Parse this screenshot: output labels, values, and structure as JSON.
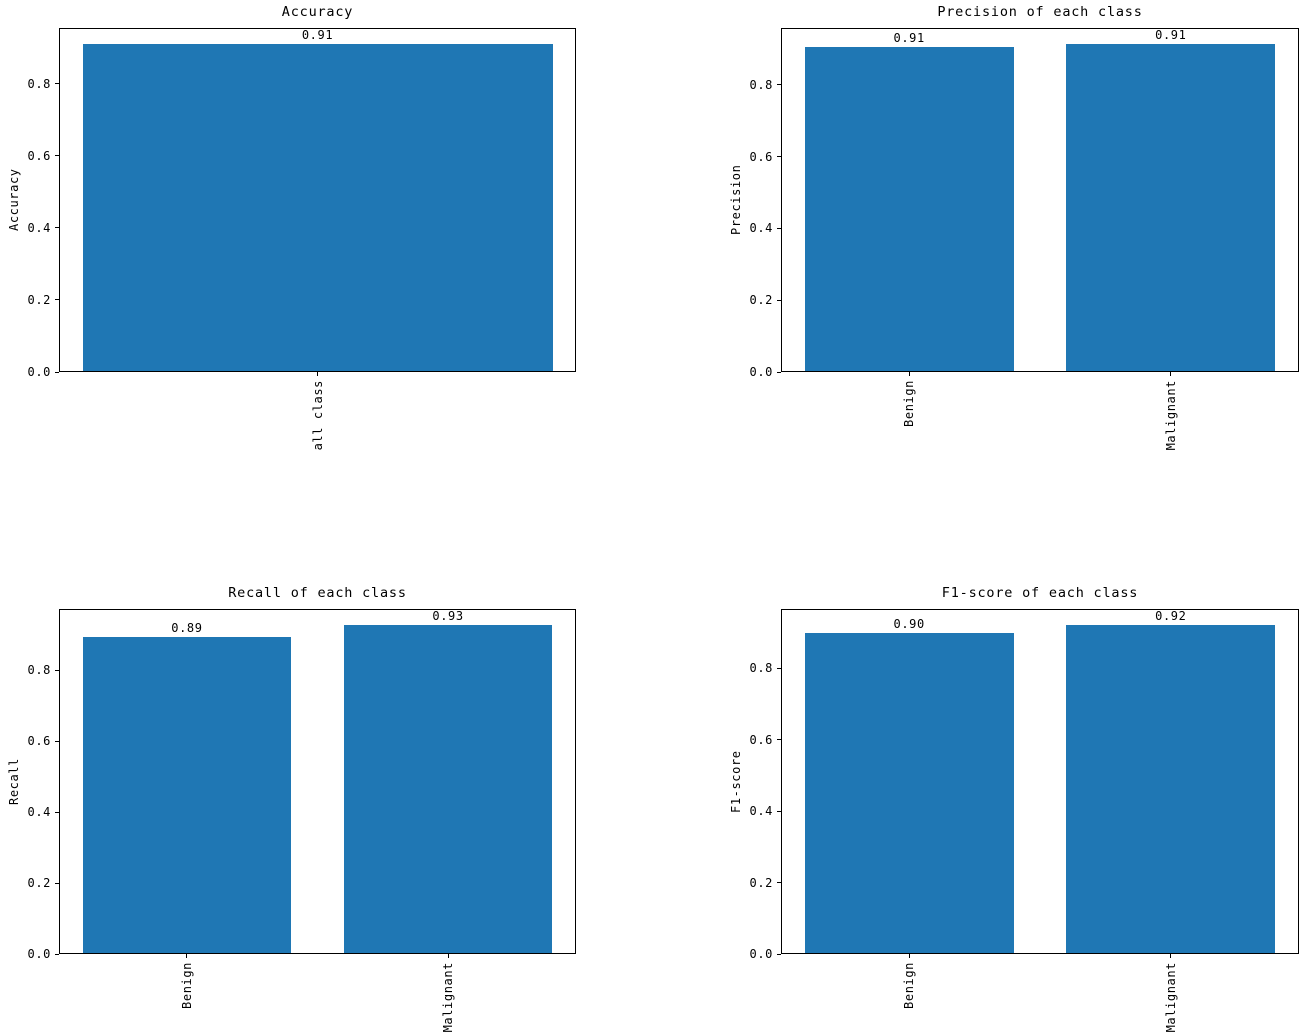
{
  "figure": {
    "background": "#ffffff",
    "bar_color": "#1f77b4",
    "axis_color": "#000000",
    "text_color": "#000000"
  },
  "chart_data": [
    {
      "type": "bar",
      "title": "Accuracy",
      "ylabel": "Accuracy",
      "xlabel": "",
      "categories": [
        "all class"
      ],
      "values": [
        0.91
      ],
      "value_labels": [
        "0.91"
      ],
      "bar_heights_estimated": [
        0.91
      ],
      "ylim": [
        0,
        0.9555
      ],
      "yticks": [
        0.0,
        0.2,
        0.4,
        0.6,
        0.8
      ],
      "ytick_labels": [
        "0.0",
        "0.2",
        "0.4",
        "0.6",
        "0.8"
      ],
      "xtick_rotation_deg": 90,
      "grid": false,
      "legend": null,
      "bar_color": "#1f77b4"
    },
    {
      "type": "bar",
      "title": "Precision of each class",
      "ylabel": "Precision",
      "xlabel": "",
      "categories": [
        "Benign",
        "Malignant"
      ],
      "values": [
        0.91,
        0.91
      ],
      "value_labels": [
        "0.91",
        "0.91"
      ],
      "bar_heights_estimated": [
        0.907,
        0.913
      ],
      "ylim": [
        0,
        0.9587
      ],
      "yticks": [
        0.0,
        0.2,
        0.4,
        0.6,
        0.8
      ],
      "ytick_labels": [
        "0.0",
        "0.2",
        "0.4",
        "0.6",
        "0.8"
      ],
      "xtick_rotation_deg": 90,
      "grid": false,
      "legend": null,
      "bar_color": "#1f77b4"
    },
    {
      "type": "bar",
      "title": "Recall of each class",
      "ylabel": "Recall",
      "xlabel": "",
      "categories": [
        "Benign",
        "Malignant"
      ],
      "values": [
        0.89,
        0.93
      ],
      "value_labels": [
        "0.89",
        "0.93"
      ],
      "bar_heights_estimated": [
        0.893,
        0.927
      ],
      "ylim": [
        0,
        0.9734
      ],
      "yticks": [
        0.0,
        0.2,
        0.4,
        0.6,
        0.8
      ],
      "ytick_labels": [
        "0.0",
        "0.2",
        "0.4",
        "0.6",
        "0.8"
      ],
      "xtick_rotation_deg": 90,
      "grid": false,
      "legend": null,
      "bar_color": "#1f77b4"
    },
    {
      "type": "bar",
      "title": "F1-score of each class",
      "ylabel": "F1-score",
      "xlabel": "",
      "categories": [
        "Benign",
        "Malignant"
      ],
      "values": [
        0.9,
        0.92
      ],
      "value_labels": [
        "0.90",
        "0.92"
      ],
      "bar_heights_estimated": [
        0.9,
        0.92
      ],
      "ylim": [
        0,
        0.966
      ],
      "yticks": [
        0.0,
        0.2,
        0.4,
        0.6,
        0.8
      ],
      "ytick_labels": [
        "0.0",
        "0.2",
        "0.4",
        "0.6",
        "0.8"
      ],
      "xtick_rotation_deg": 90,
      "grid": false,
      "legend": null,
      "bar_color": "#1f77b4"
    }
  ]
}
